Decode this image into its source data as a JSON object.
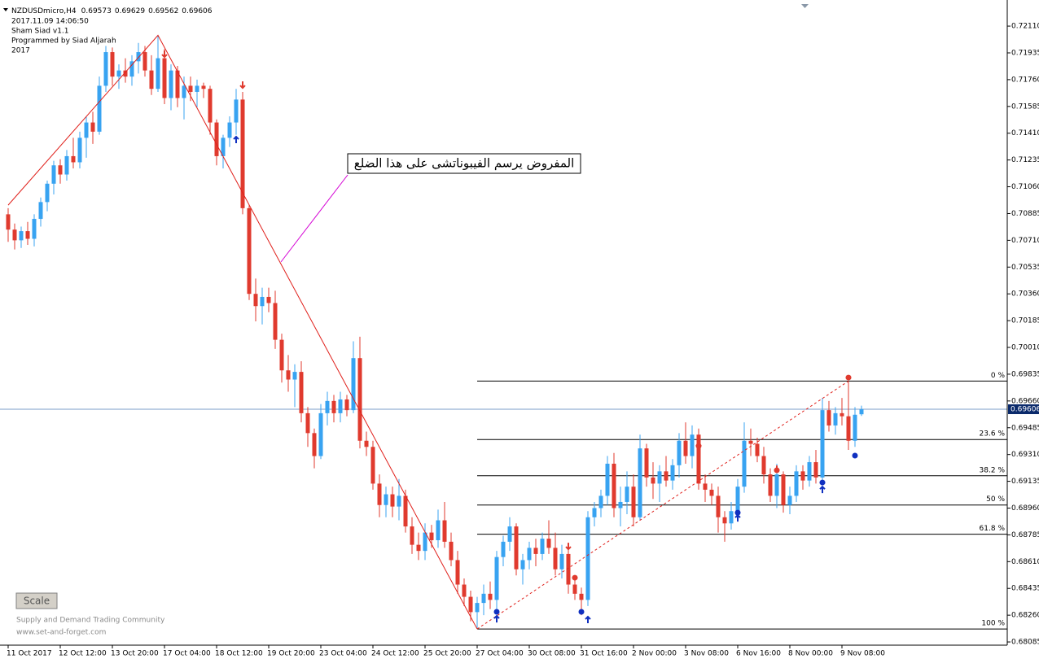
{
  "chart_data": {
    "type": "candlestick",
    "symbol": "NZDUSDmicro,H4",
    "info": [
      "2017.11.09 14:06:50",
      "Sham Siad v1.1",
      "Programmed by Siad Aljarah",
      "2017"
    ],
    "footer": [
      "Supply and Demand Trading Community",
      "www.set-and-forget.com"
    ],
    "button": "Scale",
    "annotation": "المفروض يرسم الفيبوناتشى على هذا الضلع",
    "colors": {
      "up": "#38a3f1",
      "down": "#e03a2e",
      "trend": "#e0201b",
      "current": "#7b9cc8"
    },
    "categories": [
      "11 Oct 2017",
      null,
      null,
      null,
      null,
      null,
      null,
      null,
      "12 Oct 12:00",
      null,
      null,
      null,
      null,
      null,
      null,
      null,
      "13 Oct 20:00",
      null,
      null,
      null,
      null,
      null,
      null,
      null,
      "17 Oct 04:00",
      null,
      null,
      null,
      null,
      null,
      null,
      null,
      "18 Oct 12:00",
      null,
      null,
      null,
      null,
      null,
      null,
      null,
      "19 Oct 20:00",
      null,
      null,
      null,
      null,
      null,
      null,
      null,
      "23 Oct 04:00",
      null,
      null,
      null,
      null,
      null,
      null,
      null,
      "24 Oct 12:00",
      null,
      null,
      null,
      null,
      null,
      null,
      null,
      "25 Oct 20:00",
      null,
      null,
      null,
      null,
      null,
      null,
      null,
      "27 Oct 04:00",
      null,
      null,
      null,
      null,
      null,
      null,
      null,
      "30 Oct 08:00",
      null,
      null,
      null,
      null,
      null,
      null,
      null,
      "31 Oct 16:00",
      null,
      null,
      null,
      null,
      null,
      null,
      null,
      "2 Nov 00:00",
      null,
      null,
      null,
      null,
      null,
      null,
      null,
      "3 Nov 08:00",
      null,
      null,
      null,
      null,
      null,
      null,
      null,
      "6 Nov 16:00",
      null,
      null,
      null,
      null,
      null,
      null,
      null,
      "8 Nov 00:00",
      null,
      null,
      null,
      null,
      null,
      null,
      null,
      "9 Nov 08:00",
      null,
      null,
      null
    ],
    "open": [
      0.7088,
      0.7078,
      0.7071,
      0.7077,
      0.7072,
      0.7085,
      0.7096,
      0.7108,
      0.712,
      0.7114,
      0.7126,
      0.7122,
      0.7138,
      0.7148,
      0.7142,
      0.7172,
      0.7194,
      0.7178,
      0.7182,
      0.7178,
      0.7188,
      0.7194,
      0.7182,
      0.717,
      0.719,
      0.7164,
      0.7182,
      0.7164,
      0.7172,
      0.7168,
      0.7172,
      0.717,
      0.7148,
      0.7126,
      0.7138,
      0.7148,
      0.7163,
      0.7092,
      0.7036,
      0.7028,
      0.7034,
      0.703,
      0.7006,
      0.6986,
      0.698,
      0.6985,
      0.6958,
      0.6945,
      0.693,
      0.6958,
      0.6966,
      0.6958,
      0.6967,
      0.696,
      0.6994,
      0.694,
      0.6936,
      0.6912,
      0.6898,
      0.6905,
      0.6897,
      0.6904,
      0.6884,
      0.6872,
      0.6868,
      0.688,
      0.6875,
      0.6888,
      0.6874,
      0.6862,
      0.6846,
      0.6838,
      0.6828,
      0.6834,
      0.684,
      0.6836,
      0.6864,
      0.6874,
      0.6884,
      0.6856,
      0.6862,
      0.687,
      0.6866,
      0.6876,
      0.687,
      0.6856,
      0.6866,
      0.6846,
      0.684,
      0.6836,
      0.689,
      0.6896,
      0.6904,
      0.6925,
      0.6896,
      0.69,
      0.691,
      0.689,
      0.6935,
      0.6916,
      0.6912,
      0.692,
      0.6914,
      0.6924,
      0.694,
      0.693,
      0.6944,
      0.6912,
      0.6908,
      0.6904,
      0.689,
      0.6886,
      0.6894,
      0.691,
      0.694,
      0.6938,
      0.693,
      0.6918,
      0.6904,
      0.6918,
      0.6898,
      0.6904,
      0.692,
      0.6914,
      0.6926,
      0.6916,
      0.696,
      0.695,
      0.6958,
      0.6956,
      0.694,
      0.69573
    ],
    "high": [
      0.7092,
      0.7082,
      0.708,
      0.7083,
      0.7088,
      0.7099,
      0.711,
      0.7123,
      0.7124,
      0.713,
      0.7138,
      0.7142,
      0.7152,
      0.7155,
      0.7178,
      0.7198,
      0.7197,
      0.7186,
      0.719,
      0.7192,
      0.72,
      0.7198,
      0.7192,
      0.7205,
      0.7196,
      0.7186,
      0.7185,
      0.7178,
      0.7178,
      0.7176,
      0.7174,
      0.7172,
      0.715,
      0.714,
      0.7152,
      0.717,
      0.7168,
      0.7094,
      0.7046,
      0.704,
      0.704,
      0.7038,
      0.701,
      0.6996,
      0.699,
      0.6992,
      0.6962,
      0.6948,
      0.6964,
      0.6972,
      0.697,
      0.6972,
      0.697,
      0.7005,
      0.7008,
      0.6946,
      0.694,
      0.6918,
      0.691,
      0.691,
      0.6915,
      0.6908,
      0.689,
      0.688,
      0.6886,
      0.6885,
      0.6895,
      0.69,
      0.688,
      0.6868,
      0.685,
      0.6842,
      0.6838,
      0.6846,
      0.6848,
      0.6868,
      0.6878,
      0.689,
      0.6886,
      0.6866,
      0.6874,
      0.6876,
      0.688,
      0.6888,
      0.688,
      0.6872,
      0.687,
      0.6852,
      0.6844,
      0.6894,
      0.69,
      0.6908,
      0.693,
      0.6932,
      0.691,
      0.692,
      0.6918,
      0.6944,
      0.6938,
      0.6926,
      0.6924,
      0.693,
      0.6928,
      0.6945,
      0.6952,
      0.695,
      0.6948,
      0.6918,
      0.6912,
      0.691,
      0.6894,
      0.69,
      0.6915,
      0.6952,
      0.6948,
      0.6942,
      0.6936,
      0.6922,
      0.6925,
      0.692,
      0.691,
      0.6924,
      0.6924,
      0.693,
      0.6934,
      0.6968,
      0.6966,
      0.6962,
      0.6968,
      0.6979,
      0.6962,
      0.69629
    ],
    "low": [
      0.707,
      0.7065,
      0.7066,
      0.7068,
      0.7067,
      0.708,
      0.709,
      0.7101,
      0.7108,
      0.711,
      0.7118,
      0.7118,
      0.7125,
      0.7134,
      0.714,
      0.7168,
      0.7172,
      0.717,
      0.7174,
      0.7172,
      0.718,
      0.7178,
      0.7166,
      0.7168,
      0.716,
      0.7156,
      0.7158,
      0.715,
      0.7162,
      0.7158,
      0.7164,
      0.714,
      0.712,
      0.7118,
      0.7132,
      0.714,
      0.7088,
      0.7032,
      0.7018,
      0.7016,
      0.7024,
      0.7,
      0.6978,
      0.6972,
      0.6962,
      0.6952,
      0.6936,
      0.6922,
      0.6928,
      0.695,
      0.6952,
      0.6952,
      0.6956,
      0.6958,
      0.6935,
      0.693,
      0.6908,
      0.689,
      0.689,
      0.689,
      0.6888,
      0.688,
      0.6866,
      0.6862,
      0.6862,
      0.687,
      0.687,
      0.687,
      0.6858,
      0.684,
      0.6832,
      0.6822,
      0.6817,
      0.6826,
      0.683,
      0.6828,
      0.6858,
      0.6868,
      0.6852,
      0.6846,
      0.6856,
      0.6858,
      0.6862,
      0.6866,
      0.6852,
      0.685,
      0.684,
      0.6836,
      0.6826,
      0.6832,
      0.6884,
      0.689,
      0.6898,
      0.689,
      0.6884,
      0.6892,
      0.6884,
      0.6888,
      0.691,
      0.6902,
      0.69,
      0.691,
      0.6908,
      0.6916,
      0.6925,
      0.6922,
      0.6908,
      0.69,
      0.6898,
      0.688,
      0.6874,
      0.6882,
      0.6888,
      0.6906,
      0.693,
      0.6926,
      0.6912,
      0.69,
      0.6896,
      0.6893,
      0.6892,
      0.69,
      0.6908,
      0.691,
      0.6912,
      0.6912,
      0.6946,
      0.6944,
      0.695,
      0.6934,
      0.6936,
      0.69562
    ],
    "close": [
      0.7078,
      0.7071,
      0.7077,
      0.7072,
      0.7085,
      0.7096,
      0.7108,
      0.712,
      0.7114,
      0.7126,
      0.7122,
      0.7138,
      0.7148,
      0.7142,
      0.7172,
      0.7194,
      0.7178,
      0.7182,
      0.7178,
      0.7188,
      0.7194,
      0.7182,
      0.717,
      0.719,
      0.7164,
      0.7182,
      0.7164,
      0.7172,
      0.7168,
      0.7172,
      0.717,
      0.7148,
      0.7126,
      0.7138,
      0.7148,
      0.7163,
      0.7092,
      0.7036,
      0.7028,
      0.7034,
      0.703,
      0.7006,
      0.6986,
      0.698,
      0.6985,
      0.6958,
      0.6945,
      0.693,
      0.6958,
      0.6966,
      0.6958,
      0.6967,
      0.696,
      0.6994,
      0.694,
      0.6936,
      0.6912,
      0.6898,
      0.6905,
      0.6897,
      0.6904,
      0.6884,
      0.6872,
      0.6868,
      0.688,
      0.6875,
      0.6888,
      0.6874,
      0.6862,
      0.6846,
      0.6838,
      0.6828,
      0.6834,
      0.684,
      0.6836,
      0.6864,
      0.6874,
      0.6884,
      0.6856,
      0.6862,
      0.687,
      0.6866,
      0.6876,
      0.687,
      0.6856,
      0.6866,
      0.6846,
      0.684,
      0.6836,
      0.689,
      0.6896,
      0.6904,
      0.6925,
      0.6896,
      0.69,
      0.691,
      0.689,
      0.6935,
      0.6916,
      0.6912,
      0.692,
      0.6914,
      0.6924,
      0.694,
      0.693,
      0.6944,
      0.6912,
      0.6908,
      0.6904,
      0.689,
      0.6886,
      0.6894,
      0.691,
      0.694,
      0.6938,
      0.693,
      0.6918,
      0.6904,
      0.6918,
      0.6898,
      0.6904,
      0.692,
      0.6914,
      0.6926,
      0.6916,
      0.696,
      0.695,
      0.6958,
      0.6956,
      0.694,
      0.6957,
      0.69606
    ],
    "ylim": [
      0.68064,
      0.72254
    ],
    "yticks": [
      {
        "value": 0.7211,
        "label": "0.72110"
      },
      {
        "value": 0.71935,
        "label": "0.71935"
      },
      {
        "value": 0.7176,
        "label": "0.71760"
      },
      {
        "value": 0.71585,
        "label": "0.71585"
      },
      {
        "value": 0.7141,
        "label": "0.71410"
      },
      {
        "value": 0.71235,
        "label": "0.71235"
      },
      {
        "value": 0.7106,
        "label": "0.71060"
      },
      {
        "value": 0.70885,
        "label": "0.70885"
      },
      {
        "value": 0.7071,
        "label": "0.70710"
      },
      {
        "value": 0.70535,
        "label": "0.70535"
      },
      {
        "value": 0.7036,
        "label": "0.70360"
      },
      {
        "value": 0.70185,
        "label": "0.70185"
      },
      {
        "value": 0.7001,
        "label": "0.70010"
      },
      {
        "value": 0.69835,
        "label": "0.69835"
      },
      {
        "value": 0.6966,
        "label": "0.69660"
      },
      {
        "value": 0.69485,
        "label": "0.69485"
      },
      {
        "value": 0.6931,
        "label": "0.69310"
      },
      {
        "value": 0.69135,
        "label": "0.69135"
      },
      {
        "value": 0.6896,
        "label": "0.68960"
      },
      {
        "value": 0.68785,
        "label": "0.68785"
      },
      {
        "value": 0.6861,
        "label": "0.68610"
      },
      {
        "value": 0.68435,
        "label": "0.68435"
      },
      {
        "value": 0.6826,
        "label": "0.68260"
      },
      {
        "value": 0.68085,
        "label": "0.68085"
      }
    ],
    "fibonacci": {
      "from_index": 72,
      "levels": [
        {
          "label": "0 %",
          "price": 0.6979
        },
        {
          "label": "23.6 %",
          "price": 0.69408
        },
        {
          "label": "38.2 %",
          "price": 0.69171
        },
        {
          "label": "50 %",
          "price": 0.6898
        },
        {
          "label": "61.8 %",
          "price": 0.68789
        },
        {
          "label": "100 %",
          "price": 0.6817
        }
      ]
    },
    "trend_lines": [
      {
        "style": "solid",
        "points": [
          {
            "index": 0,
            "price": 0.7094
          },
          {
            "index": 23,
            "price": 0.7205
          },
          {
            "index": 72,
            "price": 0.6817
          }
        ]
      },
      {
        "style": "dashed",
        "points": [
          {
            "index": 72,
            "price": 0.6817
          },
          {
            "index": 129,
            "price": 0.6979
          }
        ]
      }
    ],
    "signals": {
      "sell_arrows": [
        {
          "index": 24,
          "price": 0.71908
        },
        {
          "index": 36,
          "price": 0.71706
        },
        {
          "index": 86,
          "price": 0.68691
        },
        {
          "index": 106,
          "price": 0.69356
        },
        {
          "index": 118,
          "price": 0.69196
        }
      ],
      "buy_arrows": [
        {
          "index": 35,
          "price": 0.71387
        },
        {
          "index": 75,
          "price": 0.68255
        },
        {
          "index": 89,
          "price": 0.6825
        },
        {
          "index": 112,
          "price": 0.68914
        },
        {
          "index": 125,
          "price": 0.691
        }
      ],
      "sell_dots": [
        {
          "index": 87,
          "price": 0.68505
        },
        {
          "index": 106,
          "price": 0.69366
        },
        {
          "index": 118,
          "price": 0.69207
        },
        {
          "index": 129,
          "price": 0.69813
        }
      ],
      "buy_dots": [
        {
          "index": 75,
          "price": 0.68282
        },
        {
          "index": 88,
          "price": 0.68282
        },
        {
          "index": 112,
          "price": 0.6893
        },
        {
          "index": 125,
          "price": 0.69127
        },
        {
          "index": 130,
          "price": 0.69303
        }
      ]
    }
  }
}
